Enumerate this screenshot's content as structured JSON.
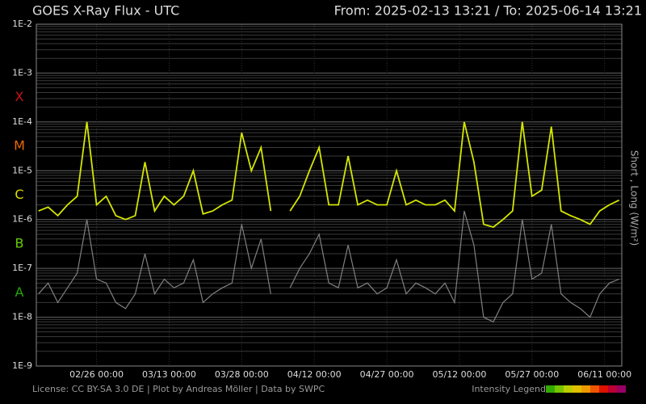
{
  "chart_data": {
    "type": "line",
    "title": "GOES X-Ray Flux - UTC",
    "subtitle": "From: 2025-02-13 13:21  /  To: 2025-06-14 13:21",
    "y_label": "Short , Long (W/m²)",
    "footer": "License: CC BY-SA 3.0 DE | Plot by Andreas Möller | Data by SWPC",
    "legend_title": "Intensity Legend",
    "intensity_colors": [
      "#33aa00",
      "#77c400",
      "#bbcc00",
      "#e0c000",
      "#ee9900",
      "#ee5500",
      "#dd1100",
      "#bb0033",
      "#990066"
    ],
    "log_y": true,
    "grid": true,
    "xlim": [
      "2025-02-13T13:21",
      "2025-06-14T13:21"
    ],
    "ylim": [
      1e-09,
      0.01
    ],
    "yticks": [
      {
        "value": 1e-09,
        "label": "1E-9"
      },
      {
        "value": 1e-08,
        "label": "1E-8"
      },
      {
        "value": 1e-07,
        "label": "1E-7"
      },
      {
        "value": 1e-06,
        "label": "1E-6"
      },
      {
        "value": 1e-05,
        "label": "1E-5"
      },
      {
        "value": 0.0001,
        "label": "1E-4"
      },
      {
        "value": 0.001,
        "label": "1E-3"
      },
      {
        "value": 0.01,
        "label": "1E-2"
      }
    ],
    "xticks": [
      {
        "value": "2025-02-26T00:00",
        "label": "02/26 00:00"
      },
      {
        "value": "2025-03-13T00:00",
        "label": "03/13 00:00"
      },
      {
        "value": "2025-03-28T00:00",
        "label": "03/28 00:00"
      },
      {
        "value": "2025-04-12T00:00",
        "label": "04/12 00:00"
      },
      {
        "value": "2025-04-27T00:00",
        "label": "04/27 00:00"
      },
      {
        "value": "2025-05-12T00:00",
        "label": "05/12 00:00"
      },
      {
        "value": "2025-05-27T00:00",
        "label": "05/27 00:00"
      },
      {
        "value": "2025-06-11T00:00",
        "label": "06/11 00:00"
      }
    ],
    "flare_classes": [
      {
        "label": "X",
        "value": 0.000316,
        "color": "#cc1111"
      },
      {
        "label": "M",
        "value": 3.16e-05,
        "color": "#ee6600"
      },
      {
        "label": "C",
        "value": 3.16e-06,
        "color": "#dddd00"
      },
      {
        "label": "B",
        "value": 3.16e-07,
        "color": "#66cc00"
      },
      {
        "label": "A",
        "value": 3.16e-08,
        "color": "#22aa00"
      }
    ],
    "x": [
      "2025-02-14",
      "2025-02-16",
      "2025-02-18",
      "2025-02-20",
      "2025-02-22",
      "2025-02-24",
      "2025-02-26",
      "2025-02-28",
      "2025-03-02",
      "2025-03-04",
      "2025-03-06",
      "2025-03-08",
      "2025-03-10",
      "2025-03-12",
      "2025-03-14",
      "2025-03-16",
      "2025-03-18",
      "2025-03-20",
      "2025-03-22",
      "2025-03-24",
      "2025-03-26",
      "2025-03-28",
      "2025-03-30",
      "2025-04-01",
      "2025-04-03",
      "2025-04-05",
      "2025-04-07",
      "2025-04-09",
      "2025-04-11",
      "2025-04-13",
      "2025-04-15",
      "2025-04-17",
      "2025-04-19",
      "2025-04-21",
      "2025-04-23",
      "2025-04-25",
      "2025-04-27",
      "2025-04-29",
      "2025-05-01",
      "2025-05-03",
      "2025-05-05",
      "2025-05-07",
      "2025-05-09",
      "2025-05-11",
      "2025-05-13",
      "2025-05-15",
      "2025-05-17",
      "2025-05-19",
      "2025-05-21",
      "2025-05-23",
      "2025-05-25",
      "2025-05-27",
      "2025-05-29",
      "2025-05-31",
      "2025-06-02",
      "2025-06-04",
      "2025-06-06",
      "2025-06-08",
      "2025-06-10",
      "2025-06-12",
      "2025-06-14"
    ],
    "series": [
      {
        "name": "Short",
        "color": "#808080",
        "values": [
          3e-08,
          5e-08,
          2e-08,
          4e-08,
          8e-08,
          1e-06,
          6e-08,
          5e-08,
          2e-08,
          1.5e-08,
          3e-08,
          2e-07,
          3e-08,
          6e-08,
          4e-08,
          5e-08,
          1.5e-07,
          2e-08,
          3e-08,
          4e-08,
          5e-08,
          8e-07,
          1e-07,
          4e-07,
          3e-08,
          null,
          4e-08,
          1e-07,
          2e-07,
          5e-07,
          5e-08,
          4e-08,
          3e-07,
          4e-08,
          5e-08,
          3e-08,
          4e-08,
          1.5e-07,
          3e-08,
          5e-08,
          4e-08,
          3e-08,
          5e-08,
          2e-08,
          1.5e-06,
          3e-07,
          1e-08,
          8e-09,
          2e-08,
          3e-08,
          1e-06,
          6e-08,
          8e-08,
          8e-07,
          3e-08,
          2e-08,
          1.5e-08,
          1e-08,
          3e-08,
          5e-08,
          6e-08
        ]
      },
      {
        "name": "Long",
        "color": "#d4e600",
        "values": [
          1.5e-06,
          1.8e-06,
          1.2e-06,
          2e-06,
          3e-06,
          0.0001,
          2e-06,
          3e-06,
          1.2e-06,
          1e-06,
          1.2e-06,
          1.5e-05,
          1.5e-06,
          3e-06,
          2e-06,
          3e-06,
          1e-05,
          1.3e-06,
          1.5e-06,
          2e-06,
          2.5e-06,
          6e-05,
          1e-05,
          3e-05,
          1.5e-06,
          null,
          1.5e-06,
          3e-06,
          1e-05,
          3e-05,
          2e-06,
          2e-06,
          2e-05,
          2e-06,
          2.5e-06,
          2e-06,
          2e-06,
          1e-05,
          2e-06,
          2.5e-06,
          2e-06,
          2e-06,
          2.5e-06,
          1.5e-06,
          0.0001,
          1.5e-05,
          8e-07,
          7e-07,
          1e-06,
          1.5e-06,
          0.0001,
          3e-06,
          4e-06,
          8e-05,
          1.5e-06,
          1.2e-06,
          1e-06,
          8e-07,
          1.5e-06,
          2e-06,
          2.5e-06
        ]
      }
    ]
  }
}
